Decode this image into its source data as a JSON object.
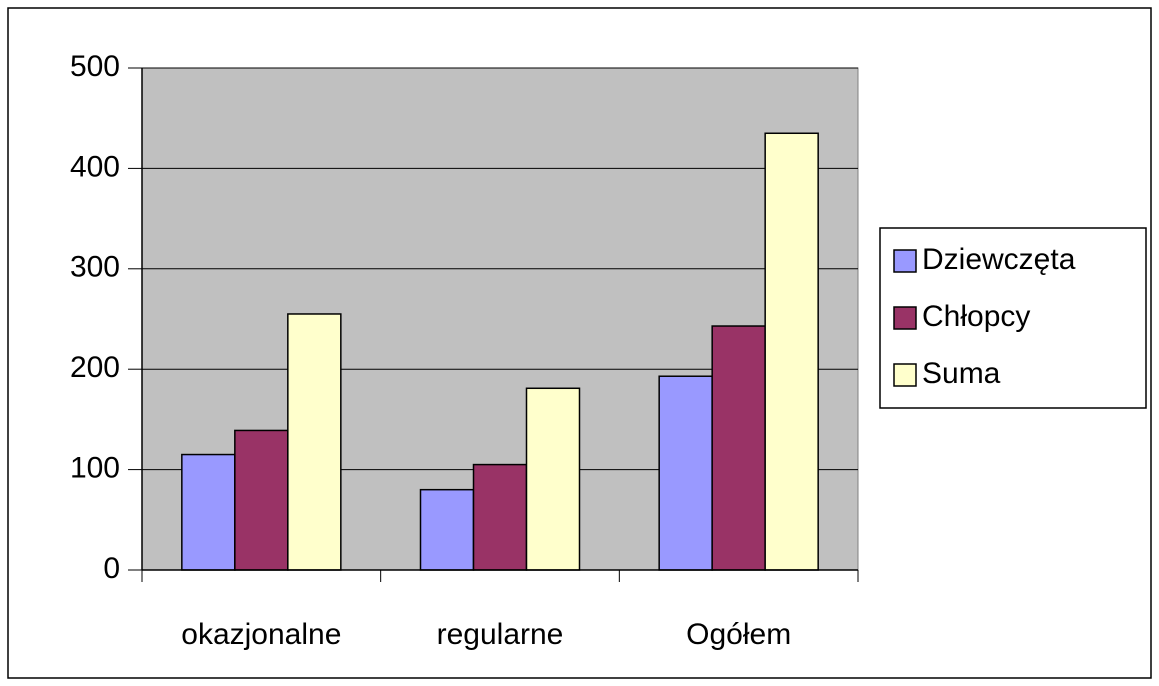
{
  "chart_data": {
    "type": "bar",
    "categories": [
      "okazjonalne",
      "regularne",
      "Ogółem"
    ],
    "series": [
      {
        "name": "Dziewczęta",
        "color": "#9999ff",
        "values": [
          115,
          80,
          193
        ]
      },
      {
        "name": "Chłopcy",
        "color": "#993366",
        "values": [
          139,
          105,
          243
        ]
      },
      {
        "name": "Suma",
        "color": "#ffffcc",
        "values": [
          255,
          181,
          435
        ]
      }
    ],
    "ylim": [
      0,
      500
    ],
    "yticks": [
      0,
      100,
      200,
      300,
      400,
      500
    ],
    "grid": true,
    "legend": "right"
  }
}
